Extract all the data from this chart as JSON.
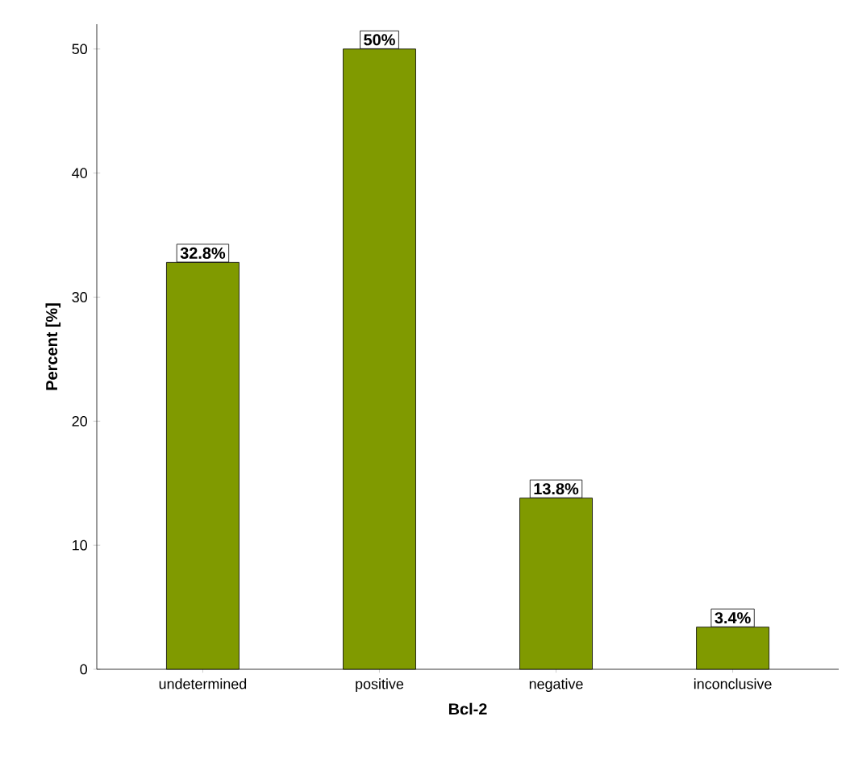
{
  "chart_data": {
    "type": "bar",
    "xlabel": "Bcl-2",
    "ylabel": "Percent [%]",
    "categories": [
      "undetermined",
      "positive",
      "negative",
      "inconclusive"
    ],
    "values": [
      32.8,
      50,
      13.8,
      3.4
    ],
    "value_labels": [
      "32.8%",
      "50%",
      "13.8%",
      "3.4%"
    ],
    "color": "#809a00",
    "ylim": [
      0,
      52
    ],
    "yticks": [
      0,
      10,
      20,
      30,
      40,
      50
    ]
  }
}
